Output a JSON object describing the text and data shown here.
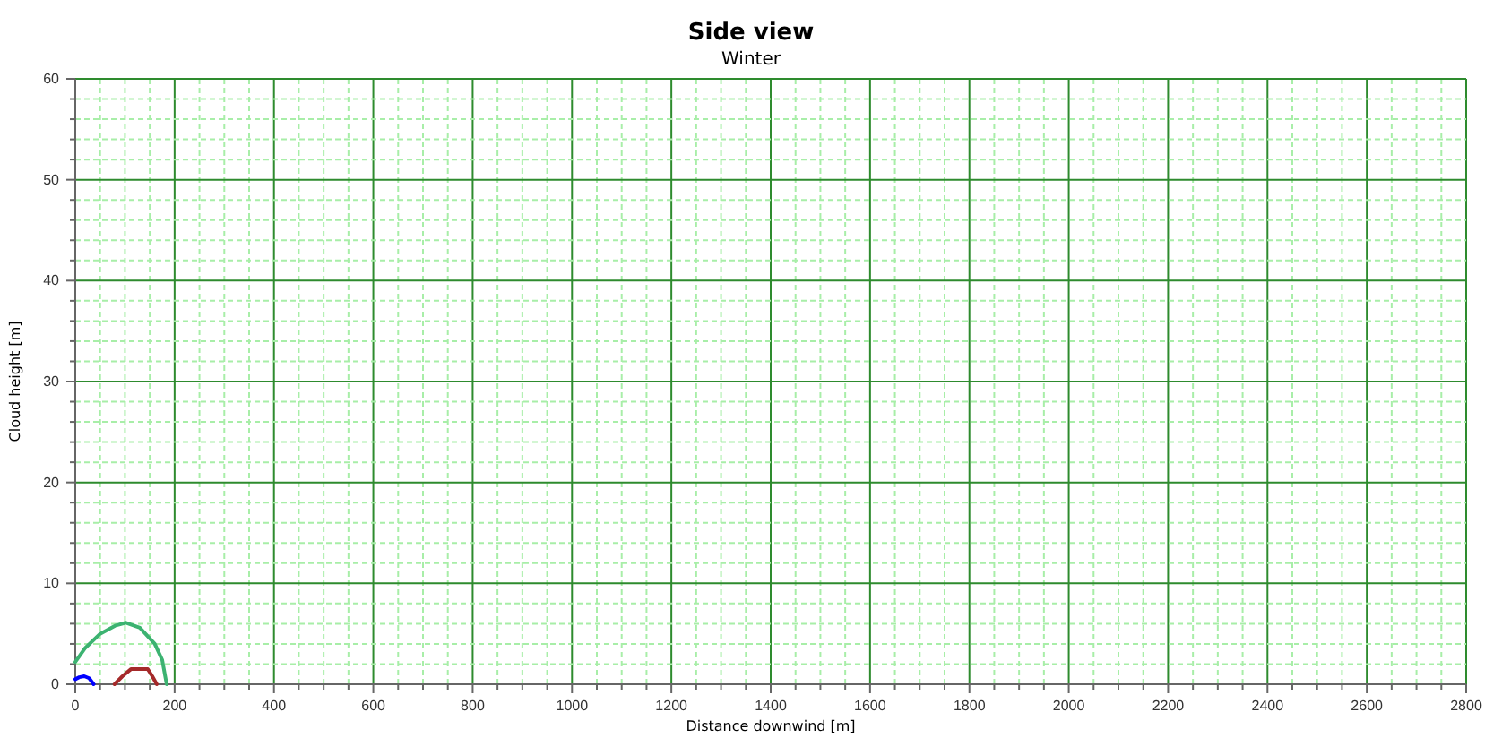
{
  "chart_data": {
    "type": "line",
    "title": "Side view",
    "subtitle": "Winter",
    "xlabel": "Distance downwind [m]",
    "ylabel": "Cloud height [m]",
    "xlim": [
      0,
      2800
    ],
    "ylim": [
      0,
      60
    ],
    "xticks": [
      0,
      {
        "value": 50,
        "label": null
      },
      {
        "value": 100,
        "label": null
      },
      {
        "value": 150,
        "label": null
      },
      200,
      {
        "value": 250,
        "label": null
      },
      {
        "value": 300,
        "label": null
      },
      {
        "value": 350,
        "label": null
      },
      400,
      {
        "value": 450,
        "label": null
      },
      {
        "value": 500,
        "label": null
      },
      {
        "value": 550,
        "label": null
      },
      600,
      {
        "value": 650,
        "label": null
      },
      {
        "value": 700,
        "label": null
      },
      {
        "value": 750,
        "label": null
      },
      800,
      {
        "value": 850,
        "label": null
      },
      {
        "value": 900,
        "label": null
      },
      {
        "value": 950,
        "label": null
      },
      1000,
      {
        "value": 1050,
        "label": null
      },
      {
        "value": 1100,
        "label": null
      },
      {
        "value": 1150,
        "label": null
      },
      1200,
      {
        "value": 1250,
        "label": null
      },
      {
        "value": 1300,
        "label": null
      },
      {
        "value": 1350,
        "label": null
      },
      1400,
      {
        "value": 1450,
        "label": null
      },
      {
        "value": 1500,
        "label": null
      },
      {
        "value": 1550,
        "label": null
      },
      1600,
      {
        "value": 1650,
        "label": null
      },
      {
        "value": 1700,
        "label": null
      },
      {
        "value": 1750,
        "label": null
      },
      1800,
      {
        "value": 1850,
        "label": null
      },
      {
        "value": 1900,
        "label": null
      },
      {
        "value": 1950,
        "label": null
      },
      2000,
      {
        "value": 2050,
        "label": null
      },
      {
        "value": 2100,
        "label": null
      },
      {
        "value": 2150,
        "label": null
      },
      2200,
      {
        "value": 2250,
        "label": null
      },
      {
        "value": 2300,
        "label": null
      },
      {
        "value": 2350,
        "label": null
      },
      2400,
      {
        "value": 2450,
        "label": null
      },
      {
        "value": 2500,
        "label": null
      },
      {
        "value": 2550,
        "label": null
      },
      2600,
      {
        "value": 2650,
        "label": null
      },
      {
        "value": 2700,
        "label": null
      },
      {
        "value": 2750,
        "label": null
      },
      2800
    ],
    "yticks": [
      0,
      {
        "value": 2,
        "label": null
      },
      {
        "value": 4,
        "label": null
      },
      {
        "value": 6,
        "label": null
      },
      {
        "value": 8,
        "label": null
      },
      10,
      {
        "value": 12,
        "label": null
      },
      {
        "value": 14,
        "label": null
      },
      {
        "value": 16,
        "label": null
      },
      {
        "value": 18,
        "label": null
      },
      20,
      {
        "value": 22,
        "label": null
      },
      {
        "value": 24,
        "label": null
      },
      {
        "value": 26,
        "label": null
      },
      {
        "value": 28,
        "label": null
      },
      30,
      {
        "value": 32,
        "label": null
      },
      {
        "value": 34,
        "label": null
      },
      {
        "value": 36,
        "label": null
      },
      {
        "value": 38,
        "label": null
      },
      40,
      {
        "value": 42,
        "label": null
      },
      {
        "value": 44,
        "label": null
      },
      {
        "value": 46,
        "label": null
      },
      {
        "value": 48,
        "label": null
      },
      50,
      {
        "value": 52,
        "label": null
      },
      {
        "value": 54,
        "label": null
      },
      {
        "value": 56,
        "label": null
      },
      {
        "value": 58,
        "label": null
      },
      60
    ],
    "grid": true,
    "series": [
      {
        "color": "#3cb371",
        "x": [
          0,
          20,
          50,
          80,
          102,
          130,
          160,
          175,
          184
        ],
        "values": [
          2.2,
          3.6,
          5,
          5.8,
          6.1,
          5.6,
          4,
          2.4,
          0
        ]
      },
      {
        "color": "#0000ff",
        "x": [
          0,
          8,
          18,
          28,
          37
        ],
        "values": [
          0.5,
          0.7,
          0.8,
          0.6,
          0
        ]
      },
      {
        "color": "#a52a2a",
        "x": [
          79,
          95,
          112,
          146,
          155,
          164
        ],
        "values": [
          0,
          0.8,
          1.5,
          1.5,
          0.8,
          0
        ]
      }
    ]
  }
}
